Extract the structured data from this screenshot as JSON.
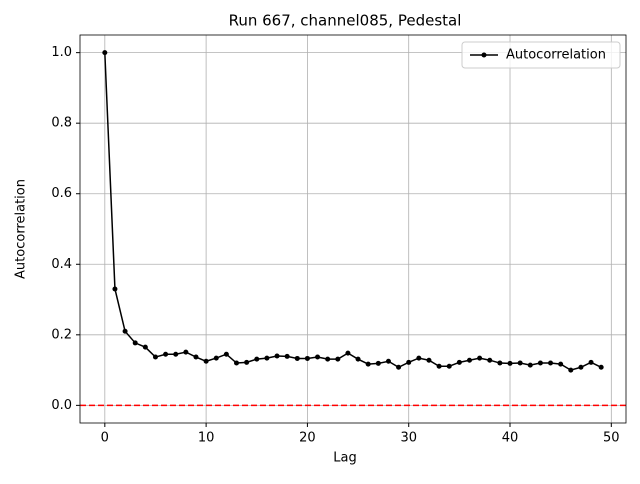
{
  "chart_data": {
    "type": "line",
    "title": "Run 667, channel085, Pedestal",
    "xlabel": "Lag",
    "ylabel": "Autocorrelation",
    "x": [
      0,
      1,
      2,
      3,
      4,
      5,
      6,
      7,
      8,
      9,
      10,
      11,
      12,
      13,
      14,
      15,
      16,
      17,
      18,
      19,
      20,
      21,
      22,
      23,
      24,
      25,
      26,
      27,
      28,
      29,
      30,
      31,
      32,
      33,
      34,
      35,
      36,
      37,
      38,
      39,
      40,
      41,
      42,
      43,
      44,
      45,
      46,
      47,
      48,
      49
    ],
    "series": [
      {
        "name": "Autocorrelation",
        "color": "#000000",
        "values": [
          1.0,
          0.33,
          0.21,
          0.177,
          0.165,
          0.137,
          0.145,
          0.145,
          0.151,
          0.137,
          0.125,
          0.134,
          0.145,
          0.12,
          0.122,
          0.131,
          0.134,
          0.14,
          0.139,
          0.133,
          0.133,
          0.137,
          0.131,
          0.131,
          0.148,
          0.131,
          0.117,
          0.119,
          0.125,
          0.108,
          0.122,
          0.134,
          0.128,
          0.111,
          0.111,
          0.122,
          0.128,
          0.134,
          0.128,
          0.12,
          0.119,
          0.12,
          0.114,
          0.12,
          0.12,
          0.117,
          0.1,
          0.108,
          0.122,
          0.108
        ]
      }
    ],
    "reference_line": {
      "y": 0,
      "color": "#ff0000",
      "style": "dashed"
    },
    "xlim": [
      -2.45,
      51.45
    ],
    "xticks": [
      0,
      10,
      20,
      30,
      40,
      50
    ],
    "ylim": [
      -0.05,
      1.05
    ],
    "yticks": [
      {
        "value": 0,
        "label": "0.0"
      },
      {
        "value": 0.2,
        "label": "0.2"
      },
      {
        "value": 0.4,
        "label": "0.4"
      },
      {
        "value": 0.6,
        "label": "0.6"
      },
      {
        "value": 0.8,
        "label": "0.8"
      },
      {
        "value": 1,
        "label": "1.0"
      }
    ],
    "grid": true,
    "legend": "upper right"
  }
}
